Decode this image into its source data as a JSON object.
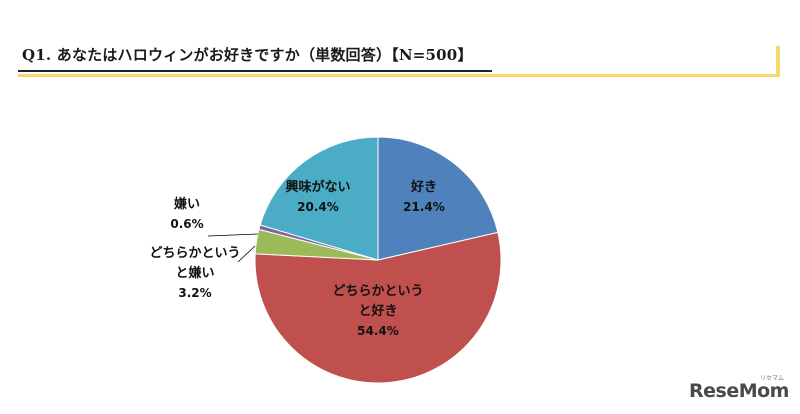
{
  "header": {
    "title": "Q1. あなたはハロウィンがお好きですか（単数回答）【N=500】"
  },
  "colors": {
    "accent_frame": "#f4d86e"
  },
  "chart_data": {
    "type": "pie",
    "title": "Q1. あなたはハロウィンがお好きですか（単数回答）【N=500】",
    "n": 500,
    "start": "12 o'clock",
    "direction": "clockwise",
    "slices": [
      {
        "name": "好き",
        "value": 21.4,
        "label_lines": [
          "好き"
        ],
        "pct_label": "21.4%",
        "color": "#4f81bd"
      },
      {
        "name": "どちらかというと好き",
        "value": 54.4,
        "label_lines": [
          "どちらかという",
          "と好き"
        ],
        "pct_label": "54.4%",
        "color": "#c0504d"
      },
      {
        "name": "どちらかというと嫌い",
        "value": 3.2,
        "label_lines": [
          "どちらかという",
          "と嫌い"
        ],
        "pct_label": "3.2%",
        "color": "#9bbb59"
      },
      {
        "name": "嫌い",
        "value": 0.6,
        "label_lines": [
          "嫌い"
        ],
        "pct_label": "0.6%",
        "color": "#8064a2"
      },
      {
        "name": "興味がない",
        "value": 20.4,
        "label_lines": [
          "興味がない"
        ],
        "pct_label": "20.4%",
        "color": "#4bacc6"
      }
    ]
  },
  "watermark": {
    "logo": "ReseMom",
    "kana": "リセマム"
  }
}
